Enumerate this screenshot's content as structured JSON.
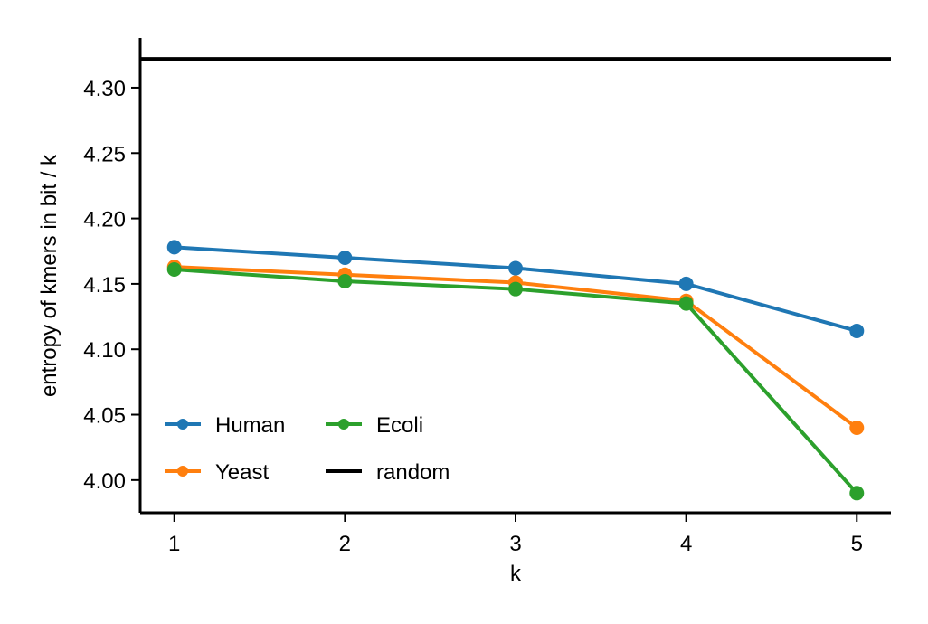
{
  "chart_data": {
    "type": "line",
    "title": "",
    "xlabel": "k",
    "ylabel": "entropy of kmers in bit / k",
    "x": [
      1,
      2,
      3,
      4,
      5
    ],
    "xticks": [
      "1",
      "2",
      "3",
      "4",
      "5"
    ],
    "xlim": [
      0.8,
      5.2
    ],
    "ylim": [
      3.975,
      4.338
    ],
    "yticks": [
      "4.00",
      "4.05",
      "4.10",
      "4.15",
      "4.20",
      "4.25",
      "4.30"
    ],
    "grid": false,
    "legend_position": "lower-left",
    "series": [
      {
        "name": "Human",
        "color": "#1f77b4",
        "values": [
          4.178,
          4.17,
          4.162,
          4.15,
          4.114
        ]
      },
      {
        "name": "Yeast",
        "color": "#ff7f0e",
        "values": [
          4.163,
          4.157,
          4.151,
          4.137,
          4.04
        ]
      },
      {
        "name": "Ecoli",
        "color": "#2ca02c",
        "values": [
          4.161,
          4.152,
          4.146,
          4.135,
          3.99
        ]
      }
    ],
    "reference_line": {
      "name": "random",
      "color": "#000000",
      "value": 4.322
    }
  }
}
